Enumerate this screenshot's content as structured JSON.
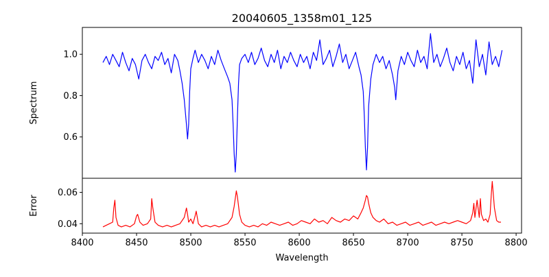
{
  "chart_data": [
    {
      "type": "line",
      "title": "20040605_1358m01_125",
      "ylabel": "Spectrum",
      "xlabel": "",
      "xlim": [
        8400,
        8805
      ],
      "ylim": [
        0.4,
        1.13
      ],
      "yticks": [
        0.6,
        0.8,
        1.0
      ],
      "ytick_labels": [
        "0.6",
        "0.8",
        "1.0"
      ],
      "grid": false,
      "series": [
        {
          "color": "#0000ff",
          "x": [
            8419,
            8422,
            8425,
            8428,
            8431,
            8434,
            8437,
            8440,
            8443,
            8446,
            8449,
            8452,
            8455,
            8458,
            8461,
            8464,
            8467,
            8470,
            8473,
            8476,
            8479,
            8482,
            8485,
            8488,
            8490,
            8492,
            8494,
            8496,
            8497,
            8498,
            8499,
            8500,
            8502,
            8504,
            8507,
            8510,
            8513,
            8516,
            8519,
            8522,
            8525,
            8528,
            8531,
            8534,
            8536,
            8538,
            8539,
            8540,
            8541,
            8542,
            8543,
            8544,
            8545,
            8547,
            8550,
            8553,
            8556,
            8559,
            8562,
            8565,
            8568,
            8571,
            8574,
            8577,
            8580,
            8583,
            8586,
            8589,
            8592,
            8595,
            8598,
            8601,
            8604,
            8607,
            8610,
            8613,
            8616,
            8619,
            8622,
            8625,
            8628,
            8631,
            8634,
            8637,
            8640,
            8643,
            8646,
            8649,
            8652,
            8655,
            8657,
            8659,
            8660,
            8661,
            8662,
            8663,
            8664,
            8666,
            8668,
            8671,
            8674,
            8677,
            8680,
            8683,
            8686,
            8688,
            8689,
            8691,
            8694,
            8697,
            8700,
            8703,
            8706,
            8709,
            8712,
            8715,
            8718,
            8721,
            8724,
            8727,
            8730,
            8733,
            8736,
            8739,
            8742,
            8745,
            8748,
            8751,
            8754,
            8757,
            8760,
            8763,
            8766,
            8769,
            8772,
            8775,
            8778,
            8781,
            8784,
            8787
          ],
          "y": [
            0.96,
            0.99,
            0.95,
            1.0,
            0.97,
            0.94,
            1.01,
            0.96,
            0.92,
            0.98,
            0.95,
            0.88,
            0.97,
            1.0,
            0.96,
            0.93,
            0.99,
            0.97,
            1.01,
            0.95,
            0.98,
            0.91,
            1.0,
            0.97,
            0.92,
            0.86,
            0.78,
            0.66,
            0.59,
            0.66,
            0.82,
            0.93,
            0.98,
            1.02,
            0.96,
            1.0,
            0.97,
            0.93,
            0.99,
            0.95,
            1.02,
            0.97,
            0.93,
            0.89,
            0.86,
            0.78,
            0.66,
            0.52,
            0.43,
            0.52,
            0.7,
            0.86,
            0.95,
            0.98,
            1.0,
            0.96,
            1.01,
            0.95,
            0.98,
            1.03,
            0.97,
            0.94,
            1.0,
            0.96,
            1.02,
            0.93,
            0.99,
            0.96,
            1.01,
            0.97,
            0.94,
            1.0,
            0.96,
            0.99,
            0.93,
            1.01,
            0.97,
            1.07,
            0.95,
            0.98,
            1.02,
            0.94,
            0.99,
            1.05,
            0.96,
            1.0,
            0.93,
            0.97,
            1.01,
            0.94,
            0.9,
            0.82,
            0.7,
            0.55,
            0.44,
            0.55,
            0.75,
            0.88,
            0.95,
            1.0,
            0.96,
            0.99,
            0.93,
            0.97,
            0.9,
            0.84,
            0.78,
            0.92,
            0.99,
            0.95,
            1.01,
            0.97,
            0.94,
            1.02,
            0.96,
            0.99,
            0.93,
            1.1,
            0.96,
            1.0,
            0.94,
            0.98,
            1.03,
            0.96,
            0.92,
            0.99,
            0.95,
            1.01,
            0.93,
            0.97,
            0.86,
            1.07,
            0.94,
            1.0,
            0.9,
            1.06,
            0.95,
            0.99,
            0.94,
            1.02
          ]
        }
      ]
    },
    {
      "type": "line",
      "title": "",
      "ylabel": "Error",
      "xlabel": "Wavelength",
      "xlim": [
        8400,
        8805
      ],
      "ylim": [
        0.034,
        0.069
      ],
      "yticks": [
        0.04,
        0.06
      ],
      "ytick_labels": [
        "0.04",
        "0.06"
      ],
      "xticks": [
        8400,
        8450,
        8500,
        8550,
        8600,
        8650,
        8700,
        8750,
        8800
      ],
      "xtick_labels": [
        "8400",
        "8450",
        "8500",
        "8550",
        "8600",
        "8650",
        "8700",
        "8750",
        "8800"
      ],
      "grid": false,
      "series": [
        {
          "color": "#ff0000",
          "x": [
            8419,
            8422,
            8425,
            8428,
            8429,
            8430,
            8431,
            8433,
            8436,
            8440,
            8444,
            8448,
            8450,
            8451,
            8453,
            8456,
            8460,
            8463,
            8464,
            8465,
            8467,
            8470,
            8474,
            8478,
            8482,
            8486,
            8490,
            8494,
            8496,
            8497,
            8498,
            8500,
            8502,
            8504,
            8505,
            8507,
            8510,
            8514,
            8518,
            8522,
            8526,
            8530,
            8534,
            8538,
            8540,
            8542,
            8543,
            8545,
            8547,
            8550,
            8554,
            8558,
            8562,
            8566,
            8570,
            8574,
            8578,
            8582,
            8586,
            8590,
            8594,
            8598,
            8602,
            8606,
            8610,
            8614,
            8618,
            8622,
            8626,
            8630,
            8634,
            8638,
            8642,
            8646,
            8650,
            8654,
            8657,
            8659,
            8661,
            8662,
            8663,
            8664,
            8666,
            8668,
            8671,
            8674,
            8678,
            8682,
            8686,
            8690,
            8694,
            8698,
            8702,
            8706,
            8710,
            8714,
            8718,
            8722,
            8726,
            8730,
            8734,
            8738,
            8742,
            8746,
            8750,
            8754,
            8758,
            8760,
            8761,
            8762,
            8764,
            8766,
            8767,
            8768,
            8770,
            8772,
            8774,
            8776,
            8777,
            8778,
            8780,
            8782,
            8784,
            8786
          ],
          "y": [
            0.038,
            0.039,
            0.04,
            0.041,
            0.05,
            0.055,
            0.044,
            0.039,
            0.038,
            0.039,
            0.038,
            0.04,
            0.045,
            0.046,
            0.041,
            0.039,
            0.04,
            0.043,
            0.056,
            0.05,
            0.041,
            0.039,
            0.038,
            0.039,
            0.038,
            0.039,
            0.04,
            0.044,
            0.05,
            0.046,
            0.041,
            0.043,
            0.04,
            0.045,
            0.048,
            0.04,
            0.038,
            0.039,
            0.038,
            0.039,
            0.038,
            0.039,
            0.04,
            0.044,
            0.051,
            0.061,
            0.057,
            0.046,
            0.041,
            0.039,
            0.038,
            0.039,
            0.038,
            0.04,
            0.039,
            0.041,
            0.04,
            0.039,
            0.04,
            0.041,
            0.039,
            0.04,
            0.042,
            0.041,
            0.04,
            0.043,
            0.041,
            0.042,
            0.04,
            0.044,
            0.042,
            0.041,
            0.043,
            0.042,
            0.045,
            0.043,
            0.047,
            0.05,
            0.055,
            0.058,
            0.057,
            0.053,
            0.047,
            0.044,
            0.042,
            0.041,
            0.043,
            0.04,
            0.041,
            0.039,
            0.04,
            0.041,
            0.039,
            0.04,
            0.041,
            0.039,
            0.04,
            0.041,
            0.039,
            0.04,
            0.041,
            0.04,
            0.041,
            0.042,
            0.041,
            0.04,
            0.042,
            0.047,
            0.053,
            0.044,
            0.055,
            0.044,
            0.056,
            0.046,
            0.042,
            0.043,
            0.041,
            0.046,
            0.058,
            0.067,
            0.05,
            0.042,
            0.041,
            0.041
          ]
        }
      ]
    }
  ]
}
